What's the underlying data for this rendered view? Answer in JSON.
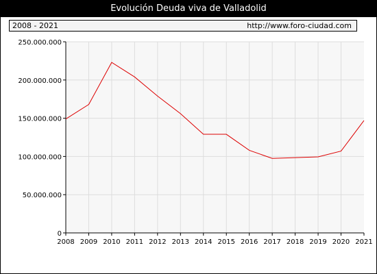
{
  "header": {
    "title": "Evolución Deuda viva de Valladolid",
    "period": "2008 - 2021",
    "url": "http://www.foro-ciudad.com"
  },
  "colors": {
    "line": "#dd0000",
    "plot_background": "#f7f7f7",
    "grid": "#dddddd",
    "title_bar": "#000000"
  },
  "chart_data": {
    "type": "line",
    "title": "Evolución Deuda viva de Valladolid",
    "xlabel": "",
    "ylabel": "",
    "x": [
      2008,
      2009,
      2010,
      2011,
      2012,
      2013,
      2014,
      2015,
      2016,
      2017,
      2018,
      2019,
      2020,
      2021
    ],
    "series": [
      {
        "values": [
          149000000,
          168000000,
          223000000,
          204000000,
          179000000,
          156000000,
          129000000,
          129000000,
          108000000,
          97500000,
          98500000,
          99500000,
          107000000,
          147000000
        ]
      }
    ],
    "xticks": [
      "2008",
      "2009",
      "2010",
      "2011",
      "2012",
      "2013",
      "2014",
      "2015",
      "2016",
      "2017",
      "2018",
      "2019",
      "2020",
      "2021"
    ],
    "yticks": [
      0,
      50000000,
      100000000,
      150000000,
      200000000,
      250000000
    ],
    "ytick_labels": [
      "0",
      "50.000.000",
      "100.000.000",
      "150.000.000",
      "200.000.000",
      "250.000.000"
    ],
    "xlim": [
      2008,
      2021
    ],
    "ylim": [
      0,
      250000000
    ],
    "grid": true,
    "legend": "none"
  }
}
